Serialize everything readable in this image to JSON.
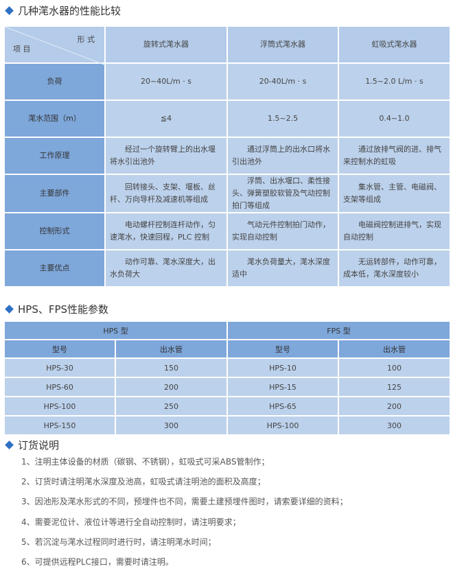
{
  "section1": {
    "title": "几种滗水器的性能比较"
  },
  "compare_table": {
    "corner_top": "形 式",
    "corner_bottom": "项 目",
    "columns": [
      "旋转式滗水器",
      "浮筒式滗水器",
      "虹吸式滗水器"
    ],
    "rows": [
      {
        "label": "负荷",
        "cells": [
          "20~40L/m · s",
          "20-40L/m · s",
          "1.5~2.0 L/m · s"
        ],
        "align": "center"
      },
      {
        "label": "滗水范围（m）",
        "cells": [
          "≦4",
          "1.5~2.5",
          "0.4~1.0"
        ],
        "align": "center"
      },
      {
        "label": "工作原理",
        "cells": [
          "经过一个旋转臂上的出水堰将水引出池外",
          "通过浮筒上的出水口将水引出池外",
          "通过放排气阀的进、排气来控制水的虹吸"
        ],
        "align": "text"
      },
      {
        "label": "主要部件",
        "cells": [
          "回转接头、支架、堰板、丝杆、万向导杆及减速机等组成",
          "浮筒、出水堰口、柔性接头、弹簧塑胶软管及气动控制拍门等组成",
          "集水管、主管、电磁阀、支架等组成"
        ],
        "align": "text"
      },
      {
        "label": "控制形式",
        "cells": [
          "电动螺杆控制连杆动作，匀速滗水，快速回程，PLC 控制",
          "气动元件控制拍门动作，实现自动控制",
          "电磁阀控制进排气，实现自动控制"
        ],
        "align": "text"
      },
      {
        "label": "主要优点",
        "cells": [
          "动作可靠、滗水深度大，出水负荷大",
          "滗水负荷量大，滗水深度适中",
          "无运转部件，动作可靠，成本低，滗水深度较小"
        ],
        "align": "text"
      }
    ]
  },
  "section2": {
    "title": "HPS、FPS性能参数"
  },
  "param_table": {
    "groups": [
      "HPS 型",
      "FPS 型"
    ],
    "headers": [
      "型号",
      "出水管",
      "型号",
      "出水管"
    ],
    "rows": [
      [
        "HPS-30",
        "150",
        "HPS-10",
        "100"
      ],
      [
        "HPS-60",
        "200",
        "HPS-15",
        "125"
      ],
      [
        "HPS-100",
        "250",
        "HPS-65",
        "200"
      ],
      [
        "HPS-150",
        "300",
        "HPS-100",
        "300"
      ]
    ]
  },
  "section3": {
    "title": "订货说明",
    "items": [
      "1、注明主体设备的材质（碳钢、不锈钢），虹吸式可采ABS管制作；",
      "2、订货时请注明滗水深度及池高，虹吸式请注明池的面积及高度；",
      "3、因池形及滗水形式的不同，预埋件也不同，需要土建预埋件图时，请索要详细的资料；",
      "4、需要泥位计、液位计等进行全自动控制时，请注明要求；",
      "5、若沉淀与滗水过程同时进行时，请注明滗水时间；",
      "6、可提供远程PLC接口，需要时请注明。"
    ]
  },
  "colors": {
    "accent": "#2f6fc4",
    "header_blue": "#7ea7da",
    "cell_blue": "#bcd1eb"
  }
}
